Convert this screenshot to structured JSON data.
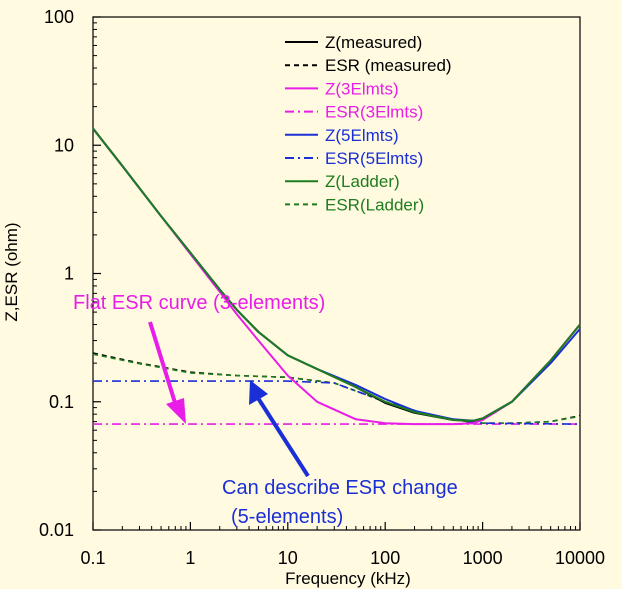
{
  "colors": {
    "background": "#fffae0",
    "measured": "#000000",
    "three_elements": "#e81ee8",
    "five_elements": "#1a2fd6",
    "ladder": "#1e7d1e"
  },
  "chart_data": {
    "type": "line",
    "xlabel": "Frequency (kHz)",
    "ylabel": "Z,ESR (ohm)",
    "xscale": "log",
    "yscale": "log",
    "xlim": [
      0.1,
      10000
    ],
    "ylim": [
      0.01,
      100
    ],
    "x_ticks": [
      {
        "value": 0.1,
        "label": "0.1"
      },
      {
        "value": 1,
        "label": "1"
      },
      {
        "value": 10,
        "label": "10"
      },
      {
        "value": 100,
        "label": "100"
      },
      {
        "value": 1000,
        "label": "1000"
      },
      {
        "value": 10000,
        "label": "10000"
      }
    ],
    "y_ticks": [
      {
        "value": 0.01,
        "label": "0.01"
      },
      {
        "value": 0.1,
        "label": "0.1"
      },
      {
        "value": 1,
        "label": "1"
      },
      {
        "value": 10,
        "label": "10"
      },
      {
        "value": 100,
        "label": "100"
      }
    ],
    "grid": false,
    "legend_position": "top-right",
    "series": [
      {
        "name": "Z(measured)",
        "color": "#000000",
        "dash": "solid",
        "x": [
          0.1,
          0.2,
          0.5,
          1,
          2,
          3,
          5,
          10,
          20,
          50,
          100,
          200,
          500,
          800,
          1000,
          2000,
          5000,
          10000
        ],
        "y": [
          13.5,
          6.9,
          2.8,
          1.45,
          0.75,
          0.52,
          0.35,
          0.23,
          0.18,
          0.13,
          0.098,
          0.082,
          0.072,
          0.071,
          0.074,
          0.1,
          0.21,
          0.4
        ]
      },
      {
        "name": "ESR (measured)",
        "color": "#000000",
        "dash": "dashed",
        "x": [
          0.1,
          0.3,
          1,
          3,
          10,
          30,
          100,
          300,
          700,
          1000,
          2000,
          5000,
          10000
        ],
        "y": [
          0.24,
          0.2,
          0.17,
          0.16,
          0.155,
          0.14,
          0.1,
          0.078,
          0.07,
          0.068,
          0.068,
          0.07,
          0.078
        ]
      },
      {
        "name": "Z(3Elmts)",
        "color": "#e81ee8",
        "dash": "solid",
        "x": [
          0.1,
          0.2,
          0.5,
          1,
          2,
          3,
          5,
          10,
          20,
          50,
          100,
          200,
          500,
          800,
          1000,
          2000,
          5000,
          10000
        ],
        "y": [
          13.5,
          6.9,
          2.8,
          1.42,
          0.72,
          0.48,
          0.3,
          0.16,
          0.1,
          0.073,
          0.068,
          0.067,
          0.067,
          0.068,
          0.072,
          0.1,
          0.21,
          0.4
        ]
      },
      {
        "name": "ESR(3Elmts)",
        "color": "#e81ee8",
        "dash": "dashdot",
        "x": [
          0.1,
          10000
        ],
        "y": [
          0.067,
          0.067
        ]
      },
      {
        "name": "Z(5Elmts)",
        "color": "#1a2fd6",
        "dash": "solid",
        "x": [
          0.1,
          0.2,
          0.5,
          1,
          2,
          3,
          5,
          10,
          20,
          50,
          100,
          200,
          500,
          800,
          1000,
          2000,
          5000,
          10000
        ],
        "y": [
          13.5,
          6.9,
          2.8,
          1.45,
          0.75,
          0.52,
          0.35,
          0.23,
          0.18,
          0.135,
          0.105,
          0.085,
          0.073,
          0.071,
          0.074,
          0.1,
          0.2,
          0.37
        ]
      },
      {
        "name": "ESR(5Elmts)",
        "color": "#1a2fd6",
        "dash": "dashdot",
        "x": [
          0.1,
          5,
          10,
          30,
          100,
          300,
          700,
          1000,
          10000
        ],
        "y": [
          0.145,
          0.145,
          0.145,
          0.14,
          0.1,
          0.078,
          0.07,
          0.068,
          0.067
        ]
      },
      {
        "name": "Z(Ladder)",
        "color": "#1e7d1e",
        "dash": "solid",
        "x": [
          0.1,
          0.2,
          0.5,
          1,
          2,
          3,
          5,
          10,
          20,
          50,
          100,
          200,
          500,
          800,
          1000,
          2000,
          5000,
          10000
        ],
        "y": [
          13.5,
          6.9,
          2.8,
          1.45,
          0.75,
          0.52,
          0.35,
          0.23,
          0.18,
          0.13,
          0.1,
          0.083,
          0.072,
          0.071,
          0.074,
          0.1,
          0.21,
          0.4
        ]
      },
      {
        "name": "ESR(Ladder)",
        "color": "#1e7d1e",
        "dash": "dashed",
        "x": [
          0.1,
          0.3,
          1,
          3,
          10,
          30,
          100,
          300,
          700,
          1000,
          2000,
          5000,
          10000
        ],
        "y": [
          0.235,
          0.198,
          0.168,
          0.16,
          0.155,
          0.14,
          0.1,
          0.078,
          0.07,
          0.068,
          0.068,
          0.07,
          0.077
        ]
      }
    ],
    "annotations": [
      {
        "text": "Flat ESR curve (3-elements)",
        "color": "#e81ee8",
        "points_to": {
          "x": 1,
          "y": 0.067
        }
      },
      {
        "text": "Can describe ESR change",
        "color": "#1a2fd6"
      },
      {
        "text": "(5-elements)",
        "color": "#1a2fd6",
        "points_to": {
          "x": 5,
          "y": 0.145
        }
      }
    ]
  }
}
